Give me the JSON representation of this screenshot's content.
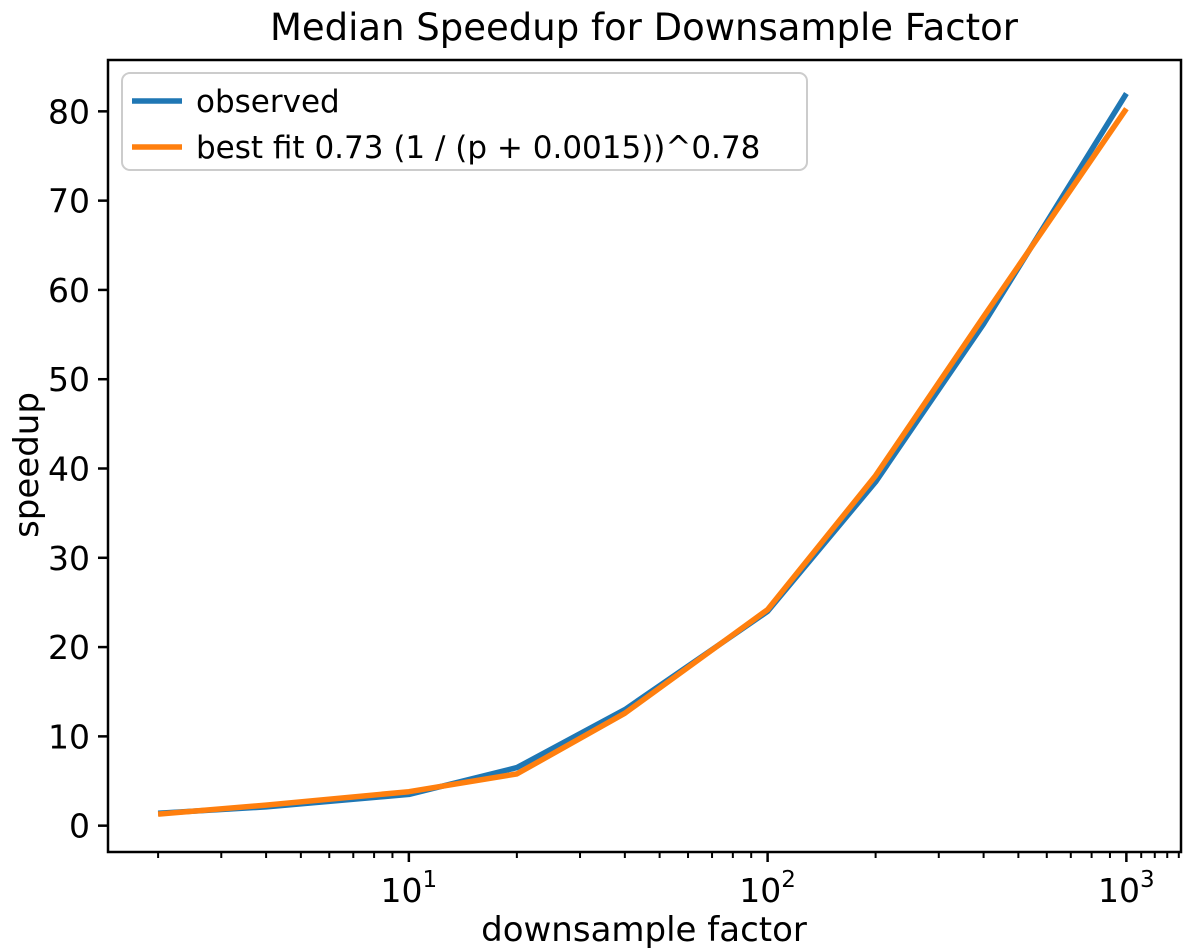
{
  "chart_data": {
    "type": "line",
    "title": "Median Speedup for Downsample Factor",
    "xlabel": "downsample factor",
    "ylabel": "speedup",
    "x_scale": "log",
    "xlim": [
      1.45,
      1420
    ],
    "ylim": [
      -2.95,
      85.75
    ],
    "grid": false,
    "legend_position": "upper left",
    "x": [
      2,
      4,
      10,
      20,
      40,
      100,
      200,
      400,
      1000
    ],
    "series": [
      {
        "name": "observed",
        "color": "#1f77b4",
        "values": [
          1.4,
          2.1,
          3.5,
          6.5,
          13.0,
          24.0,
          38.5,
          56.2,
          82.0
        ]
      },
      {
        "name": "best fit 0.73 (1 / (p + 0.0015))^0.78",
        "color": "#ff7f0e",
        "values": [
          1.3,
          2.3,
          3.8,
          5.8,
          12.6,
          24.2,
          39.2,
          57.0,
          80.3
        ]
      }
    ],
    "y_ticks": [
      0,
      10,
      20,
      30,
      40,
      50,
      60,
      70,
      80
    ],
    "x_major_ticks": [
      {
        "value": 10,
        "base": "10",
        "exponent": "1"
      },
      {
        "value": 100,
        "base": "10",
        "exponent": "2"
      },
      {
        "value": 1000,
        "base": "10",
        "exponent": "3"
      }
    ],
    "x_minor_ticks": [
      2,
      3,
      4,
      5,
      6,
      7,
      8,
      9,
      20,
      30,
      40,
      50,
      60,
      70,
      80,
      90,
      200,
      300,
      400,
      500,
      600,
      700,
      800,
      900,
      1100,
      1200,
      1300,
      1400
    ]
  }
}
